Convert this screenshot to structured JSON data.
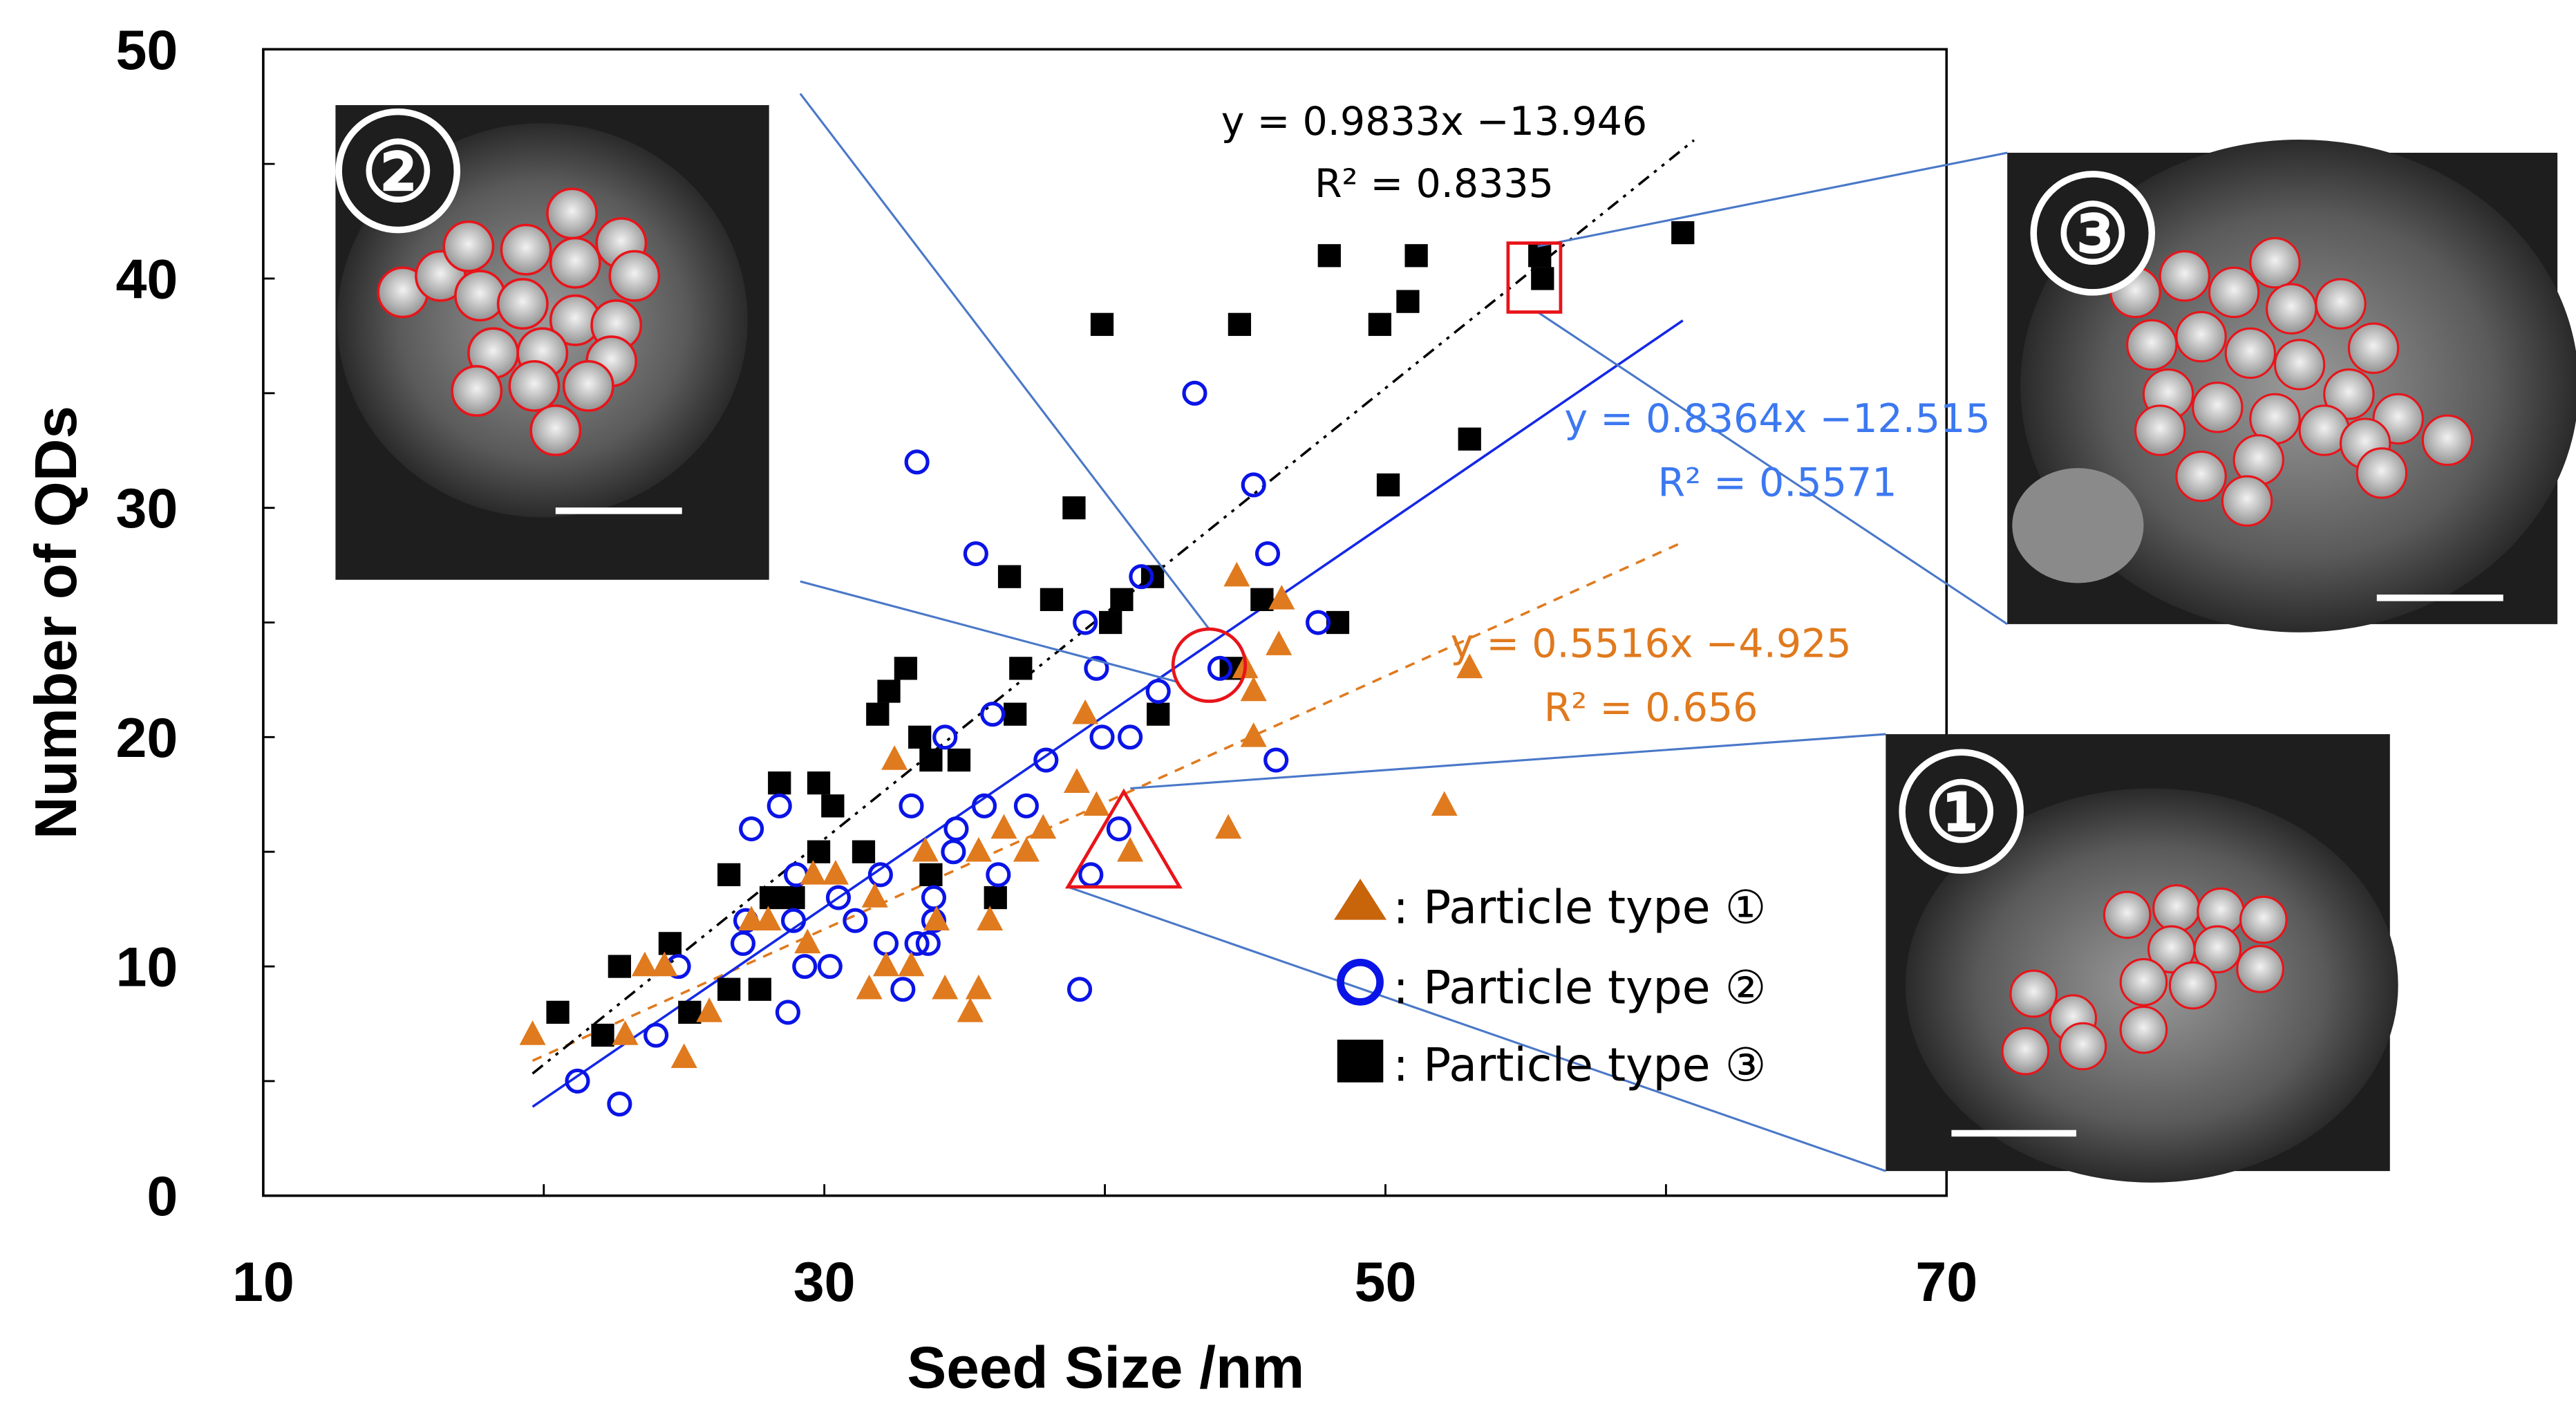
{
  "chart_data": {
    "type": "scatter",
    "xlabel": "Seed Size /nm",
    "ylabel": "Number of QDs",
    "xlim": [
      10,
      70
    ],
    "ylim": [
      0,
      50
    ],
    "xticks": [
      "10",
      "30",
      "50",
      "70"
    ],
    "xtick_values": [
      10,
      30,
      50,
      70
    ],
    "yticks": [
      "0",
      "10",
      "20",
      "30",
      "40",
      "50"
    ],
    "ytick_values": [
      0,
      10,
      20,
      30,
      40,
      50
    ],
    "grid": false,
    "series": [
      {
        "name": ": Particle type ①",
        "marker": "triangle",
        "color": "#e07a1e",
        "fit": {
          "slope": 0.5516,
          "intercept": -4.925,
          "range": [
            19.6,
            60.6
          ],
          "style": "dashed",
          "equation": "y = 0.5516x −4.925",
          "r2": "R² = 0.656"
        },
        "points": [
          [
            19.6,
            7
          ],
          [
            22.9,
            7
          ],
          [
            23.6,
            10
          ],
          [
            24.3,
            10
          ],
          [
            25,
            6
          ],
          [
            25.9,
            8
          ],
          [
            27.4,
            12
          ],
          [
            28,
            12
          ],
          [
            29.4,
            11
          ],
          [
            29.6,
            14
          ],
          [
            30.4,
            14
          ],
          [
            31.6,
            9
          ],
          [
            31.8,
            13
          ],
          [
            32.2,
            10
          ],
          [
            32.5,
            19
          ],
          [
            33.1,
            10
          ],
          [
            33.6,
            15
          ],
          [
            34,
            12
          ],
          [
            34.3,
            9
          ],
          [
            35.2,
            8
          ],
          [
            35.5,
            9
          ],
          [
            35.5,
            15
          ],
          [
            35.9,
            12
          ],
          [
            36.4,
            16
          ],
          [
            37.2,
            15
          ],
          [
            37.8,
            16
          ],
          [
            39,
            18
          ],
          [
            39.3,
            21
          ],
          [
            39.7,
            17
          ],
          [
            40.9,
            15
          ],
          [
            44.4,
            16
          ],
          [
            44.7,
            27
          ],
          [
            45,
            23
          ],
          [
            45.3,
            22
          ],
          [
            45.3,
            20
          ],
          [
            46.3,
            26
          ],
          [
            46.2,
            24
          ],
          [
            52.1,
            17
          ],
          [
            53,
            23
          ]
        ]
      },
      {
        "name": ": Particle type ②",
        "marker": "circle",
        "color": "#0a14e6",
        "fit": {
          "slope": 0.8364,
          "intercept": -12.515,
          "range": [
            19.6,
            60.6
          ],
          "style": "solid",
          "equation": "y = 0.8364x −12.515",
          "r2": "R² = 0.5571"
        },
        "points": [
          [
            21.2,
            5
          ],
          [
            22.7,
            4
          ],
          [
            24,
            7
          ],
          [
            24.8,
            10
          ],
          [
            27.1,
            11
          ],
          [
            27.2,
            12
          ],
          [
            27.4,
            16
          ],
          [
            28.4,
            17
          ],
          [
            28.7,
            8
          ],
          [
            28.9,
            12
          ],
          [
            29.3,
            10
          ],
          [
            29,
            14
          ],
          [
            30.2,
            10
          ],
          [
            30.5,
            13
          ],
          [
            31.1,
            12
          ],
          [
            32,
            14
          ],
          [
            32.2,
            11
          ],
          [
            32.8,
            9
          ],
          [
            33.3,
            32
          ],
          [
            33.1,
            17
          ],
          [
            33.3,
            11
          ],
          [
            33.7,
            11
          ],
          [
            33.9,
            13
          ],
          [
            33.9,
            12
          ],
          [
            34.3,
            20
          ],
          [
            34.6,
            15
          ],
          [
            34.7,
            16
          ],
          [
            35.4,
            28
          ],
          [
            35.7,
            17
          ],
          [
            36,
            21
          ],
          [
            36.2,
            14
          ],
          [
            37.2,
            17
          ],
          [
            37.9,
            19
          ],
          [
            39.1,
            9
          ],
          [
            39.3,
            25
          ],
          [
            39.5,
            14
          ],
          [
            39.7,
            23
          ],
          [
            39.9,
            20
          ],
          [
            40.5,
            16
          ],
          [
            40.9,
            20
          ],
          [
            41.3,
            27
          ],
          [
            41.9,
            22
          ],
          [
            43.2,
            35
          ],
          [
            44.1,
            23
          ],
          [
            45.3,
            31
          ],
          [
            45.8,
            28
          ],
          [
            46.1,
            19
          ],
          [
            47.6,
            25
          ]
        ]
      },
      {
        "name": ": Particle type ③",
        "marker": "square",
        "color": "#000000",
        "fit": {
          "slope": 0.9833,
          "intercept": -13.946,
          "range": [
            19.6,
            61
          ],
          "style": "dashdot",
          "equation": "y = 0.9833x −13.946",
          "r2": "R² = 0.8335"
        },
        "points": [
          [
            20.5,
            8
          ],
          [
            22.1,
            7
          ],
          [
            22.7,
            10
          ],
          [
            24.5,
            11
          ],
          [
            25.2,
            8
          ],
          [
            26.6,
            14
          ],
          [
            26.6,
            9
          ],
          [
            27.7,
            9
          ],
          [
            28.1,
            13
          ],
          [
            28.4,
            18
          ],
          [
            28.9,
            13
          ],
          [
            29.8,
            18
          ],
          [
            29.8,
            15
          ],
          [
            30.3,
            17
          ],
          [
            31.4,
            15
          ],
          [
            31.9,
            21
          ],
          [
            32.3,
            22
          ],
          [
            32.9,
            23
          ],
          [
            33.4,
            20
          ],
          [
            33.8,
            19
          ],
          [
            33.8,
            14
          ],
          [
            34.8,
            19
          ],
          [
            36.1,
            13
          ],
          [
            36.6,
            27
          ],
          [
            36.8,
            21
          ],
          [
            37,
            23
          ],
          [
            38.1,
            26
          ],
          [
            38.9,
            30
          ],
          [
            39.9,
            38
          ],
          [
            40.2,
            25
          ],
          [
            40.6,
            26
          ],
          [
            41.7,
            27
          ],
          [
            41.9,
            21
          ],
          [
            44.8,
            38
          ],
          [
            44.5,
            23
          ],
          [
            45.6,
            26
          ],
          [
            48,
            41
          ],
          [
            48.3,
            25
          ],
          [
            49.8,
            38
          ],
          [
            50.1,
            31
          ],
          [
            50.8,
            39
          ],
          [
            51.1,
            41
          ],
          [
            53,
            33
          ],
          [
            55.5,
            41
          ],
          [
            55.6,
            40
          ],
          [
            60.6,
            42
          ]
        ]
      }
    ],
    "insets": [
      {
        "label": "②"
      },
      {
        "label": "③"
      },
      {
        "label": "①"
      }
    ],
    "legend_placement": "bottom-right"
  }
}
